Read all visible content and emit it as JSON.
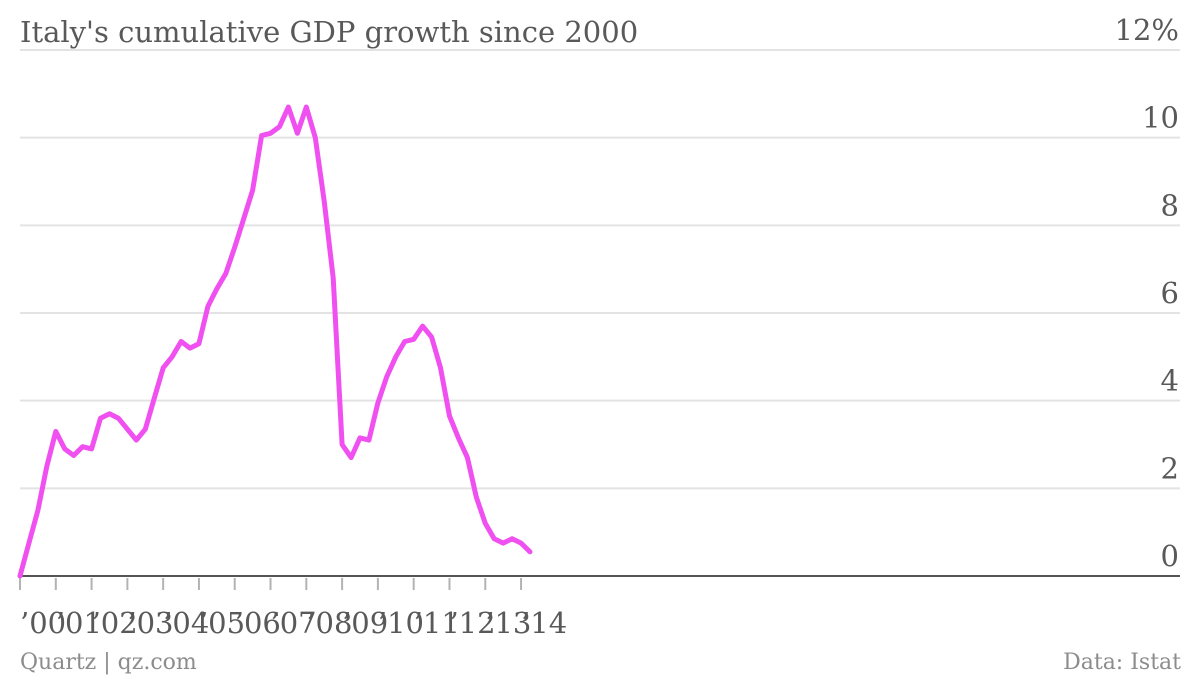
{
  "chart_data": {
    "type": "line",
    "title": "Italy's cumulative GDP growth since 2000",
    "xlabel": "",
    "ylabel": "",
    "ylim": [
      0,
      12
    ],
    "y_ticks": [
      {
        "value": 0,
        "label": "0"
      },
      {
        "value": 2,
        "label": "2"
      },
      {
        "value": 4,
        "label": "4"
      },
      {
        "value": 6,
        "label": "6"
      },
      {
        "value": 8,
        "label": "8"
      },
      {
        "value": 10,
        "label": "10"
      },
      {
        "value": 12,
        "label": "12%"
      }
    ],
    "x_unit": "year",
    "x_ticks": [
      {
        "value": 2000,
        "label": "’00"
      },
      {
        "value": 2001,
        "label": "’01"
      },
      {
        "value": 2002,
        "label": "’02"
      },
      {
        "value": 2003,
        "label": "’03"
      },
      {
        "value": 2004,
        "label": "’04"
      },
      {
        "value": 2005,
        "label": "’05"
      },
      {
        "value": 2006,
        "label": "’06"
      },
      {
        "value": 2007,
        "label": "’07"
      },
      {
        "value": 2008,
        "label": "’08"
      },
      {
        "value": 2009,
        "label": "’09"
      },
      {
        "value": 2010,
        "label": "’10"
      },
      {
        "value": 2011,
        "label": "’11"
      },
      {
        "value": 2012,
        "label": "’12"
      },
      {
        "value": 2013,
        "label": "’13"
      },
      {
        "value": 2014,
        "label": "’14"
      }
    ],
    "grid": true,
    "legend": "none",
    "series": [
      {
        "color": "#f050f0",
        "x": [
          2000.0,
          2000.25,
          2000.5,
          2000.75,
          2001.0,
          2001.25,
          2001.5,
          2001.75,
          2002.0,
          2002.25,
          2002.5,
          2002.75,
          2003.0,
          2003.25,
          2003.5,
          2003.75,
          2004.0,
          2004.25,
          2004.5,
          2004.75,
          2005.0,
          2005.25,
          2005.5,
          2005.75,
          2006.0,
          2006.25,
          2006.5,
          2006.75,
          2007.0,
          2007.25,
          2007.5,
          2007.75,
          2008.0,
          2008.25,
          2008.5,
          2008.75,
          2009.0,
          2009.25,
          2009.5,
          2009.75,
          2010.0,
          2010.25,
          2010.5,
          2010.75,
          2011.0,
          2011.25,
          2011.5,
          2011.75,
          2012.0,
          2012.25,
          2012.5,
          2012.75,
          2013.0,
          2013.25,
          2013.5,
          2013.75,
          2014.0,
          2014.25
        ],
        "values": [
          0.0,
          0.75,
          1.5,
          2.5,
          3.3,
          2.9,
          2.75,
          2.95,
          2.9,
          3.6,
          3.7,
          3.6,
          3.35,
          3.1,
          3.35,
          4.05,
          4.75,
          5.0,
          5.35,
          5.2,
          5.3,
          6.15,
          6.55,
          6.9,
          7.5,
          8.15,
          8.8,
          10.05,
          10.1,
          10.25,
          10.7,
          10.1,
          10.7,
          10.0,
          8.55,
          6.8,
          3.0,
          2.7,
          3.15,
          3.1,
          3.95,
          4.55,
          5.0,
          5.35,
          5.4,
          5.7,
          5.45,
          4.75,
          3.65,
          3.15,
          2.7,
          1.8,
          1.2,
          0.85,
          0.75,
          0.85,
          0.75,
          0.55
        ]
      }
    ]
  },
  "footer": {
    "source_left": "Quartz | qz.com",
    "source_right": "Data: Istat"
  }
}
